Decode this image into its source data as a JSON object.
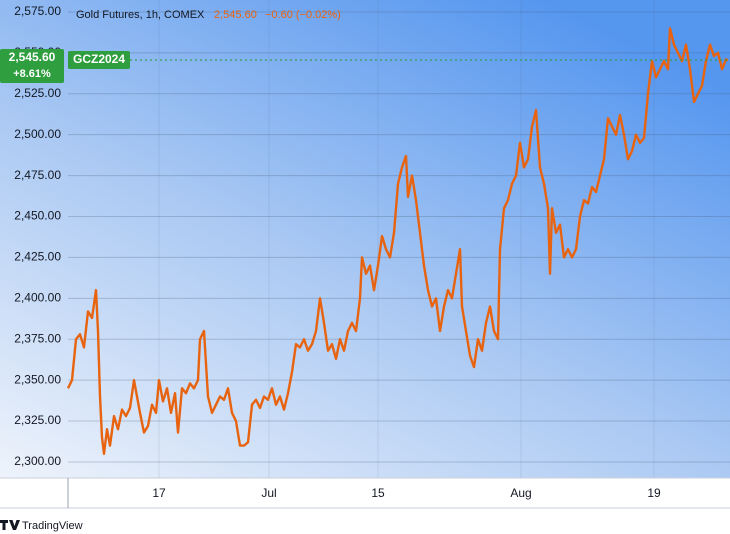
{
  "chart_data": {
    "type": "line",
    "title": "Gold Futures, 1h, COMEX",
    "last_price": {
      "value": 2545.6,
      "label": "2,545.60"
    },
    "change_label": "−0.60 (−0.02%)",
    "period_change_label": "+8.61%",
    "symbol": "GCZ2024",
    "source": "TradingView",
    "x": [
      0,
      4,
      8,
      12,
      16,
      20,
      24,
      28,
      30,
      32,
      34,
      36,
      39,
      42,
      46,
      50,
      54,
      58,
      62,
      66,
      69,
      72,
      76,
      80,
      84,
      88,
      91,
      95,
      99,
      103,
      107,
      110,
      114,
      118,
      122,
      126,
      130,
      132,
      136,
      138,
      140,
      144,
      148,
      152,
      156,
      160,
      164,
      168,
      172,
      176,
      180,
      184,
      188,
      192,
      196,
      200,
      204,
      208,
      212,
      216,
      220,
      224,
      228,
      232,
      236,
      240,
      244,
      248,
      252,
      256,
      260,
      264,
      268,
      272,
      276,
      280,
      284,
      288,
      292,
      294,
      298,
      302,
      306,
      310,
      314,
      318,
      322,
      326,
      330,
      334,
      338,
      340,
      344,
      348,
      352,
      356,
      360,
      364,
      368,
      372,
      376,
      380,
      384,
      388,
      392,
      394,
      398,
      402,
      406,
      410,
      414,
      418,
      422,
      426,
      430,
      432,
      436,
      440,
      444,
      448,
      452,
      456,
      460,
      464,
      468,
      472,
      476,
      480,
      482,
      484,
      488,
      492,
      496,
      500,
      504,
      508,
      512,
      516,
      520,
      524,
      528,
      532,
      536,
      540,
      544,
      548,
      552,
      556,
      560,
      564,
      568,
      572,
      576,
      580,
      584,
      588,
      592,
      596,
      600,
      602,
      606,
      610,
      614,
      618,
      622,
      626,
      630,
      634,
      638,
      642,
      646,
      650,
      654,
      658,
      660
    ],
    "series": [
      {
        "color": "#e8630f",
        "values": [
          2345,
          2350,
          2375,
          2378,
          2370,
          2392,
          2388,
          2405,
          2380,
          2340,
          2315,
          2305,
          2320,
          2310,
          2328,
          2320,
          2332,
          2328,
          2333,
          2350,
          2340,
          2330,
          2318,
          2322,
          2335,
          2330,
          2350,
          2337,
          2345,
          2330,
          2342,
          2318,
          2345,
          2342,
          2348,
          2345,
          2350,
          2375,
          2380,
          2360,
          2340,
          2330,
          2335,
          2340,
          2338,
          2345,
          2330,
          2325,
          2310,
          2310,
          2312,
          2335,
          2338,
          2333,
          2340,
          2338,
          2345,
          2335,
          2340,
          2332,
          2342,
          2355,
          2372,
          2370,
          2375,
          2368,
          2372,
          2380,
          2400,
          2385,
          2368,
          2372,
          2363,
          2375,
          2368,
          2380,
          2385,
          2380,
          2400,
          2425,
          2415,
          2420,
          2405,
          2420,
          2438,
          2430,
          2425,
          2440,
          2470,
          2480,
          2487,
          2462,
          2475,
          2460,
          2440,
          2420,
          2405,
          2395,
          2400,
          2380,
          2395,
          2405,
          2400,
          2415,
          2430,
          2395,
          2380,
          2365,
          2358,
          2375,
          2368,
          2385,
          2395,
          2380,
          2375,
          2430,
          2455,
          2460,
          2470,
          2475,
          2495,
          2480,
          2485,
          2505,
          2515,
          2480,
          2470,
          2455,
          2415,
          2455,
          2440,
          2445,
          2425,
          2430,
          2425,
          2430,
          2450,
          2460,
          2458,
          2468,
          2465,
          2475,
          2485,
          2510,
          2505,
          2500,
          2512,
          2500,
          2485,
          2490,
          2500,
          2495,
          2498,
          2525,
          2545,
          2535,
          2540,
          2545,
          2540,
          2565,
          2555,
          2550,
          2545,
          2555,
          2540,
          2520,
          2525,
          2530,
          2545,
          2555,
          2548,
          2550,
          2540,
          2546,
          2545.6
        ]
      }
    ],
    "xlim": [
      0,
      662
    ],
    "xticks": [
      {
        "value": 91,
        "label": "17"
      },
      {
        "value": 201,
        "label": "Jul"
      },
      {
        "value": 310,
        "label": "15"
      },
      {
        "value": 453,
        "label": "Aug"
      },
      {
        "value": 586,
        "label": "19"
      }
    ],
    "ylim": [
      2290.2,
      2582.3
    ],
    "yticks": [
      {
        "value": 2300,
        "label": "2,300.00"
      },
      {
        "value": 2325,
        "label": "2,325.00"
      },
      {
        "value": 2350,
        "label": "2,350.00"
      },
      {
        "value": 2375,
        "label": "2,375.00"
      },
      {
        "value": 2400,
        "label": "2,400.00"
      },
      {
        "value": 2425,
        "label": "2,425.00"
      },
      {
        "value": 2450,
        "label": "2,450.00"
      },
      {
        "value": 2475,
        "label": "2,475.00"
      },
      {
        "value": 2500,
        "label": "2,500.00"
      },
      {
        "value": 2525,
        "label": "2,525.00"
      },
      {
        "value": 2550,
        "label": "2,550.00"
      },
      {
        "value": 2575,
        "label": "2,575.00"
      }
    ],
    "grid": true
  }
}
